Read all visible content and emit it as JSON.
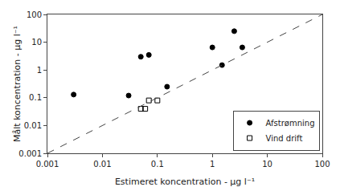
{
  "chart_data": {
    "type": "scatter",
    "xlabel": "Estimeret koncentration - µg l⁻¹",
    "ylabel": "Målt koncentration - µg l⁻¹",
    "log": true,
    "grid": false,
    "legend": "lower right",
    "xlim": [
      0.001,
      100
    ],
    "ylim": [
      0.001,
      100
    ],
    "xticks": [
      0.001,
      0.01,
      0.1,
      1,
      10,
      100
    ],
    "yticks": [
      0.001,
      0.01,
      0.1,
      1,
      10,
      100
    ],
    "series": [
      {
        "name": "Afstrømning",
        "type": "scatter",
        "marker": "circle",
        "color": "#000000",
        "x": [
          0.003,
          0.03,
          0.05,
          0.07,
          0.15,
          1.0,
          1.5,
          2.5,
          3.5
        ],
        "values": [
          0.13,
          0.12,
          3.0,
          3.5,
          0.25,
          6.5,
          1.5,
          25.0,
          6.5
        ]
      },
      {
        "name": "Vind drift",
        "type": "scatter",
        "marker": "square-open",
        "color": "#000000",
        "x": [
          0.05,
          0.06,
          0.07,
          0.1
        ],
        "values": [
          0.04,
          0.04,
          0.08,
          0.08
        ]
      },
      {
        "type": "line",
        "line_style": "dashed",
        "color": "#444444",
        "x": [
          0.001,
          100
        ],
        "values": [
          0.001,
          100
        ]
      }
    ]
  }
}
